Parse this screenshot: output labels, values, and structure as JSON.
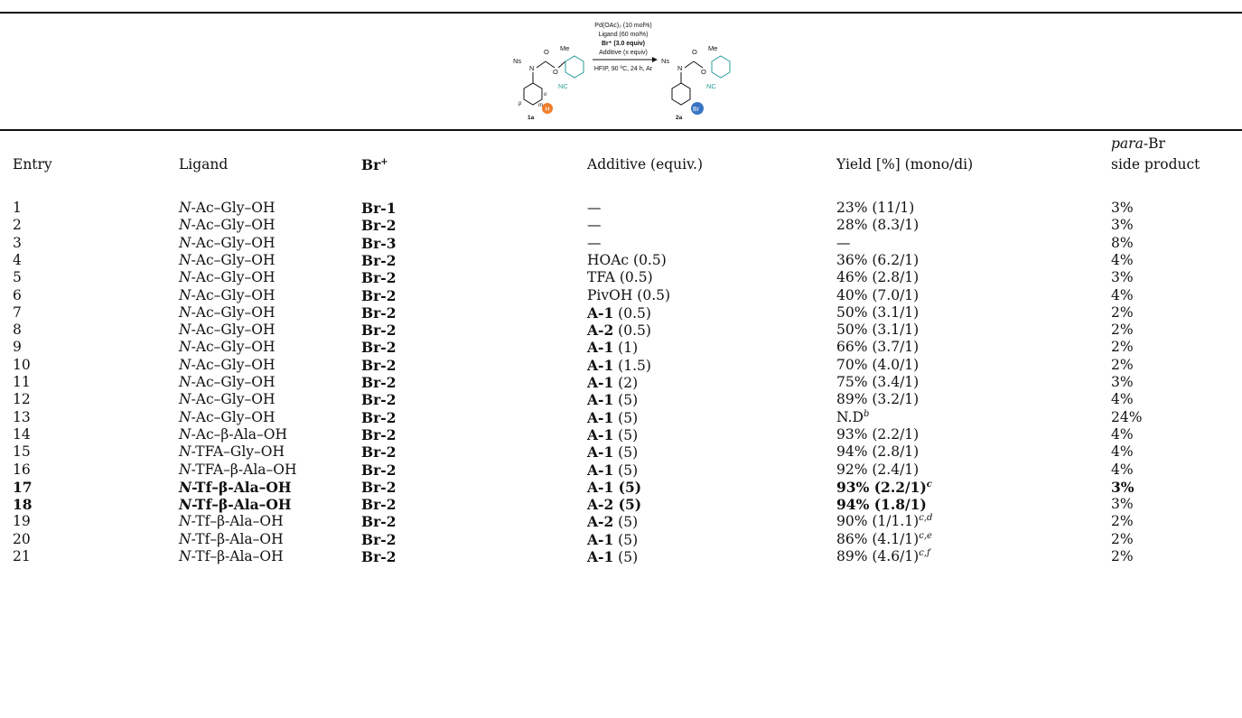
{
  "scheme": {
    "substrate_label": "1a",
    "product_label": "2a",
    "ns_label": "Ns",
    "n_label": "N",
    "o_label": "O",
    "me_label": "Me",
    "nc_label": "NC",
    "o_pos_label": "o",
    "m_pos_label": "m",
    "p_pos_label": "p",
    "h_label": "H",
    "br_label": "Br",
    "conditions": [
      "Pd(OAc)₂ (10 mol%)",
      "Ligand (60 mol%)",
      "Br⁺ (3.0 equiv)",
      "Additive (x equiv)",
      "HFIP, 90 ºC, 24 h, Ar"
    ],
    "colors": {
      "teal": "#2a9d9a",
      "orange": "#f07d2a",
      "blue": "#3a74c4"
    }
  },
  "headers": {
    "entry": "Entry",
    "ligand": "Ligand",
    "br": "Br",
    "br_sup": "+",
    "additive": "Additive (equiv.)",
    "yield": "Yield [%] (mono/di)",
    "para_line1": "para",
    "para_line1_suffix": "-Br",
    "para_line2": "side product"
  },
  "rows": [
    {
      "entry": "1",
      "lig_pre": "N",
      "lig_rest": "-Ac–Gly–OH",
      "br": "Br-1",
      "add_b": "—",
      "add_n": "",
      "yield": "23% (11/1)",
      "sup": "",
      "para": "3%",
      "bold": false
    },
    {
      "entry": "2",
      "lig_pre": "N",
      "lig_rest": "-Ac–Gly–OH",
      "br": "Br-2",
      "add_b": "—",
      "add_n": "",
      "yield": "28% (8.3/1)",
      "sup": "",
      "para": "3%",
      "bold": false
    },
    {
      "entry": "3",
      "lig_pre": "N",
      "lig_rest": "-Ac–Gly–OH",
      "br": "Br-3",
      "add_b": "—",
      "add_n": "",
      "yield": "—",
      "sup": "",
      "para": "8%",
      "bold": false
    },
    {
      "entry": "4",
      "lig_pre": "N",
      "lig_rest": "-Ac–Gly–OH",
      "br": "Br-2",
      "add_b": "",
      "add_n": "HOAc (0.5)",
      "yield": "36% (6.2/1)",
      "sup": "",
      "para": "4%",
      "bold": false
    },
    {
      "entry": "5",
      "lig_pre": "N",
      "lig_rest": "-Ac–Gly–OH",
      "br": "Br-2",
      "add_b": "",
      "add_n": "TFA (0.5)",
      "yield": "46% (2.8/1)",
      "sup": "",
      "para": "3%",
      "bold": false
    },
    {
      "entry": "6",
      "lig_pre": "N",
      "lig_rest": "-Ac–Gly–OH",
      "br": "Br-2",
      "add_b": "",
      "add_n": "PivOH (0.5)",
      "yield": "40% (7.0/1)",
      "sup": "",
      "para": "4%",
      "bold": false
    },
    {
      "entry": "7",
      "lig_pre": "N",
      "lig_rest": "-Ac–Gly–OH",
      "br": "Br-2",
      "add_b": "A-1",
      "add_n": " (0.5)",
      "yield": "50% (3.1/1)",
      "sup": "",
      "para": "2%",
      "bold": false
    },
    {
      "entry": "8",
      "lig_pre": "N",
      "lig_rest": "-Ac–Gly–OH",
      "br": "Br-2",
      "add_b": "A-2",
      "add_n": " (0.5)",
      "yield": "50% (3.1/1)",
      "sup": "",
      "para": "2%",
      "bold": false
    },
    {
      "entry": "9",
      "lig_pre": "N",
      "lig_rest": "-Ac–Gly–OH",
      "br": "Br-2",
      "add_b": "A-1",
      "add_n": " (1)",
      "yield": "66% (3.7/1)",
      "sup": "",
      "para": "2%",
      "bold": false
    },
    {
      "entry": "10",
      "lig_pre": "N",
      "lig_rest": "-Ac–Gly–OH",
      "br": "Br-2",
      "add_b": "A-1",
      "add_n": " (1.5)",
      "yield": "70% (4.0/1)",
      "sup": "",
      "para": "2%",
      "bold": false
    },
    {
      "entry": "11",
      "lig_pre": "N",
      "lig_rest": "-Ac–Gly–OH",
      "br": "Br-2",
      "add_b": "A-1",
      "add_n": " (2)",
      "yield": "75% (3.4/1)",
      "sup": "",
      "para": "3%",
      "bold": false
    },
    {
      "entry": "12",
      "lig_pre": "N",
      "lig_rest": "-Ac–Gly–OH",
      "br": "Br-2",
      "add_b": "A-1",
      "add_n": " (5)",
      "yield": "89% (3.2/1)",
      "sup": "",
      "para": "4%",
      "bold": false
    },
    {
      "entry": "13",
      "lig_pre": "N",
      "lig_rest": "-Ac–Gly–OH",
      "br": "Br-2",
      "add_b": "A-1",
      "add_n": " (5)",
      "yield": "N.D",
      "sup": "b",
      "para": "24%",
      "bold": false
    },
    {
      "entry": "14",
      "lig_pre": "N",
      "lig_rest": "-Ac–β-Ala–OH",
      "br": "Br-2",
      "add_b": "A-1",
      "add_n": " (5)",
      "yield": "93% (2.2/1)",
      "sup": "",
      "para": "4%",
      "bold": false
    },
    {
      "entry": "15",
      "lig_pre": "N",
      "lig_rest": "-TFA–Gly–OH",
      "br": "Br-2",
      "add_b": "A-1",
      "add_n": " (5)",
      "yield": "94% (2.8/1)",
      "sup": "",
      "para": "4%",
      "bold": false
    },
    {
      "entry": "16",
      "lig_pre": "N",
      "lig_rest": "-TFA–β-Ala–OH",
      "br": "Br-2",
      "add_b": "A-1",
      "add_n": " (5)",
      "yield": "92% (2.4/1)",
      "sup": "",
      "para": "4%",
      "bold": false
    },
    {
      "entry": "17",
      "lig_pre": "N",
      "lig_rest": "-Tf–β-Ala–OH",
      "br": "Br-2",
      "add_b": "A-1",
      "add_n": " (5)",
      "yield": "93% (2.2/1)",
      "sup": "c",
      "para": "3%",
      "bold": true
    },
    {
      "entry": "18",
      "lig_pre": "N",
      "lig_rest": "-Tf–β-Ala–OH",
      "br": "Br-2",
      "add_b": "A-2",
      "add_n": " (5)",
      "yield": "94% (1.8/1)",
      "sup": "",
      "para": "3%",
      "bold": true
    },
    {
      "entry": "19",
      "lig_pre": "N",
      "lig_rest": "-Tf–β-Ala–OH",
      "br": "Br-2",
      "add_b": "A-2",
      "add_n": " (5)",
      "yield": "90% (1/1.1)",
      "sup": "c,d",
      "para": "2%",
      "bold": false
    },
    {
      "entry": "20",
      "lig_pre": "N",
      "lig_rest": "-Tf–β-Ala–OH",
      "br": "Br-2",
      "add_b": "A-1",
      "add_n": " (5)",
      "yield": "86% (4.1/1)",
      "sup": "c,e",
      "para": "2%",
      "bold": false
    },
    {
      "entry": "21",
      "lig_pre": "N",
      "lig_rest": "-Tf–β-Ala–OH",
      "br": "Br-2",
      "add_b": "A-1",
      "add_n": " (5)",
      "yield": "89% (4.6/1)",
      "sup": "c,f",
      "para": "2%",
      "bold": false
    }
  ]
}
